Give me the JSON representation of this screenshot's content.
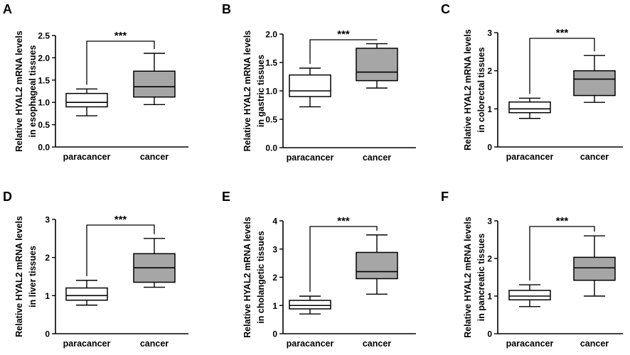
{
  "chart_data": [
    {
      "panel": "A",
      "type": "box",
      "ylabel_line1": "Relative HYAL2 mRNA levels",
      "ylabel_line2": "in esophageal tissues",
      "categories": [
        "paracancer",
        "cancer"
      ],
      "ylim": [
        0,
        2.5
      ],
      "yticks": [
        "0.0",
        "0.5",
        "1.0",
        "1.5",
        "2.0",
        "2.5"
      ],
      "boxes": [
        {
          "category": "paracancer",
          "min": 0.7,
          "q1": 0.9,
          "median": 1.0,
          "q3": 1.2,
          "max": 1.3
        },
        {
          "category": "cancer",
          "min": 0.95,
          "q1": 1.12,
          "median": 1.35,
          "q3": 1.7,
          "max": 2.1
        }
      ],
      "significance": "***"
    },
    {
      "panel": "B",
      "type": "box",
      "ylabel_line1": "Relative HYAL2 mRNA levels",
      "ylabel_line2": "in gastric tissues",
      "categories": [
        "paracancer",
        "cancer"
      ],
      "ylim": [
        0,
        2.0
      ],
      "yticks": [
        "0.0",
        "0.5",
        "1.0",
        "1.5",
        "2.0"
      ],
      "boxes": [
        {
          "category": "paracancer",
          "min": 0.72,
          "q1": 0.9,
          "median": 1.0,
          "q3": 1.28,
          "max": 1.4
        },
        {
          "category": "cancer",
          "min": 1.05,
          "q1": 1.18,
          "median": 1.33,
          "q3": 1.75,
          "max": 1.83
        }
      ],
      "significance": "***"
    },
    {
      "panel": "C",
      "type": "box",
      "ylabel_line1": "Relative HYAL2 mRNA levels",
      "ylabel_line2": "in colorectal tissues",
      "categories": [
        "paracancer",
        "cancer"
      ],
      "ylim": [
        0,
        3
      ],
      "yticks": [
        "0",
        "1",
        "2",
        "3"
      ],
      "boxes": [
        {
          "category": "paracancer",
          "min": 0.75,
          "q1": 0.9,
          "median": 1.0,
          "q3": 1.18,
          "max": 1.28
        },
        {
          "category": "cancer",
          "min": 1.17,
          "q1": 1.35,
          "median": 1.78,
          "q3": 2.0,
          "max": 2.4
        }
      ],
      "significance": "***"
    },
    {
      "panel": "D",
      "type": "box",
      "ylabel_line1": "Relative HYAL2 mRNA levels",
      "ylabel_line2": "in liver tissues",
      "categories": [
        "paracancer",
        "cancer"
      ],
      "ylim": [
        0,
        3
      ],
      "yticks": [
        "0",
        "1",
        "2",
        "3"
      ],
      "boxes": [
        {
          "category": "paracancer",
          "min": 0.75,
          "q1": 0.88,
          "median": 1.0,
          "q3": 1.2,
          "max": 1.4
        },
        {
          "category": "cancer",
          "min": 1.22,
          "q1": 1.35,
          "median": 1.73,
          "q3": 2.1,
          "max": 2.5
        }
      ],
      "significance": "***"
    },
    {
      "panel": "E",
      "type": "box",
      "ylabel_line1": "Relative HYAL2 mRNA levels",
      "ylabel_line2": "in cholangetic tissues",
      "categories": [
        "paracancer",
        "cancer"
      ],
      "ylim": [
        0,
        4
      ],
      "yticks": [
        "0",
        "1",
        "2",
        "3",
        "4"
      ],
      "boxes": [
        {
          "category": "paracancer",
          "min": 0.7,
          "q1": 0.88,
          "median": 1.0,
          "q3": 1.18,
          "max": 1.33
        },
        {
          "category": "cancer",
          "min": 1.4,
          "q1": 1.95,
          "median": 2.2,
          "q3": 2.88,
          "max": 3.5
        }
      ],
      "significance": "***"
    },
    {
      "panel": "F",
      "type": "box",
      "ylabel_line1": "Relative HYAL2 mRNA levels",
      "ylabel_line2": "in pancreatic tissues",
      "categories": [
        "paracancer",
        "cancer"
      ],
      "ylim": [
        0,
        3
      ],
      "yticks": [
        "0",
        "1",
        "2",
        "3"
      ],
      "boxes": [
        {
          "category": "paracancer",
          "min": 0.72,
          "q1": 0.9,
          "median": 1.0,
          "q3": 1.15,
          "max": 1.3
        },
        {
          "category": "cancer",
          "min": 1.0,
          "q1": 1.42,
          "median": 1.75,
          "q3": 2.03,
          "max": 2.6
        }
      ],
      "significance": "***"
    }
  ],
  "colors": {
    "paracancer_fill": "#ffffff",
    "cancer_fill": "#a6a6a6",
    "stroke": "#000000"
  }
}
